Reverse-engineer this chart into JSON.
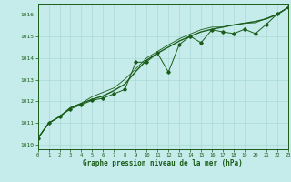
{
  "xlabel": "Graphe pression niveau de la mer (hPa)",
  "xlim": [
    0,
    23
  ],
  "ylim": [
    1009.8,
    1016.5
  ],
  "yticks": [
    1010,
    1011,
    1012,
    1013,
    1014,
    1015,
    1016
  ],
  "xticks": [
    0,
    1,
    2,
    3,
    4,
    5,
    6,
    7,
    8,
    9,
    10,
    11,
    12,
    13,
    14,
    15,
    16,
    17,
    18,
    19,
    20,
    21,
    22,
    23
  ],
  "bg_color": "#c5ecea",
  "grid_color": "#aad8d5",
  "line_color": "#1a5c1a",
  "series_dots": [
    1010.3,
    1011.0,
    1011.3,
    1011.65,
    1011.85,
    1012.05,
    1012.15,
    1012.35,
    1012.55,
    1013.8,
    1013.82,
    1014.22,
    1013.35,
    1014.62,
    1015.0,
    1014.7,
    1015.3,
    1015.2,
    1015.12,
    1015.32,
    1015.12,
    1015.55,
    1016.02,
    1016.32
  ],
  "series_smooth1": [
    1010.3,
    1011.0,
    1011.3,
    1011.7,
    1011.9,
    1012.1,
    1012.25,
    1012.5,
    1012.8,
    1013.38,
    1013.9,
    1014.22,
    1014.5,
    1014.78,
    1015.0,
    1015.2,
    1015.32,
    1015.42,
    1015.52,
    1015.6,
    1015.68,
    1015.8,
    1016.0,
    1016.32
  ],
  "series_smooth2": [
    1010.3,
    1011.0,
    1011.3,
    1011.72,
    1011.92,
    1012.22,
    1012.42,
    1012.62,
    1013.02,
    1013.5,
    1014.0,
    1014.3,
    1014.6,
    1014.88,
    1015.1,
    1015.3,
    1015.42,
    1015.42,
    1015.52,
    1015.6,
    1015.62,
    1015.82,
    1016.02,
    1016.32
  ]
}
